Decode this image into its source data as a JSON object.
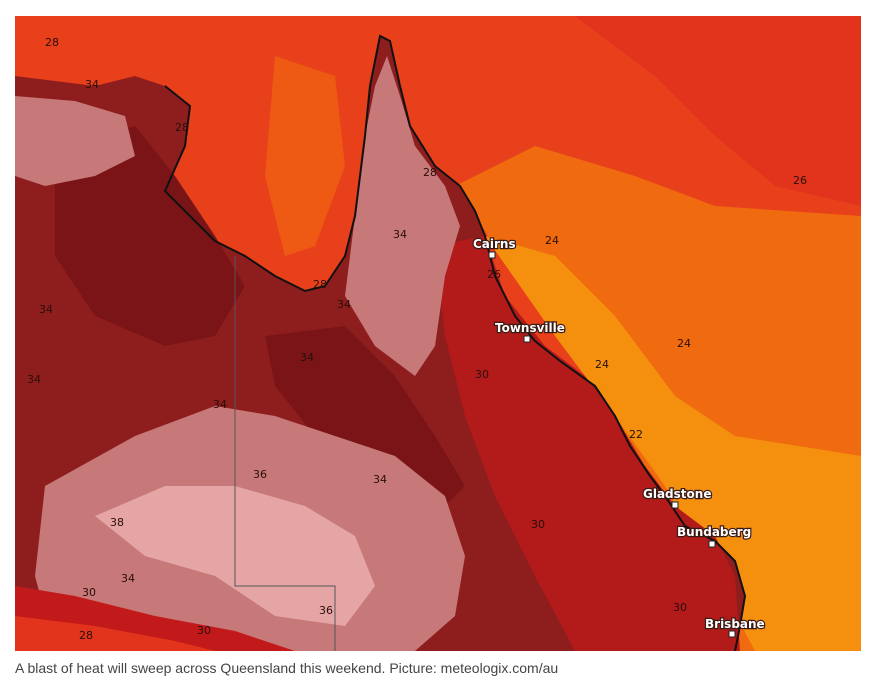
{
  "caption": "A blast of heat will sweep across Queensland this weekend. Picture: meteologix.com/au",
  "colors": {
    "ocean_hot": "#e8401a",
    "ocean_warm": "#f06a10",
    "ocean_orange": "#f5900f",
    "ocean_deep": "#e23a1c",
    "land_34": "#8e1e1e",
    "land_dark": "#7a1416",
    "land_pink": "#c77878",
    "land_light_pink": "#e5a5a5",
    "land_coast_red": "#b31a1a",
    "coastline": "#111111"
  },
  "cities": [
    {
      "name": "Cairns"
    },
    {
      "name": "Townsville"
    },
    {
      "name": "Gladstone"
    },
    {
      "name": "Bundaberg"
    },
    {
      "name": "Brisbane"
    }
  ],
  "contour_labels": [
    "28",
    "34",
    "28",
    "28",
    "34",
    "34",
    "28",
    "24",
    "26",
    "34",
    "34",
    "34",
    "30",
    "24",
    "24",
    "34",
    "22",
    "36",
    "34",
    "30",
    "38",
    "34",
    "36",
    "30",
    "30",
    "28",
    "30",
    "26"
  ]
}
